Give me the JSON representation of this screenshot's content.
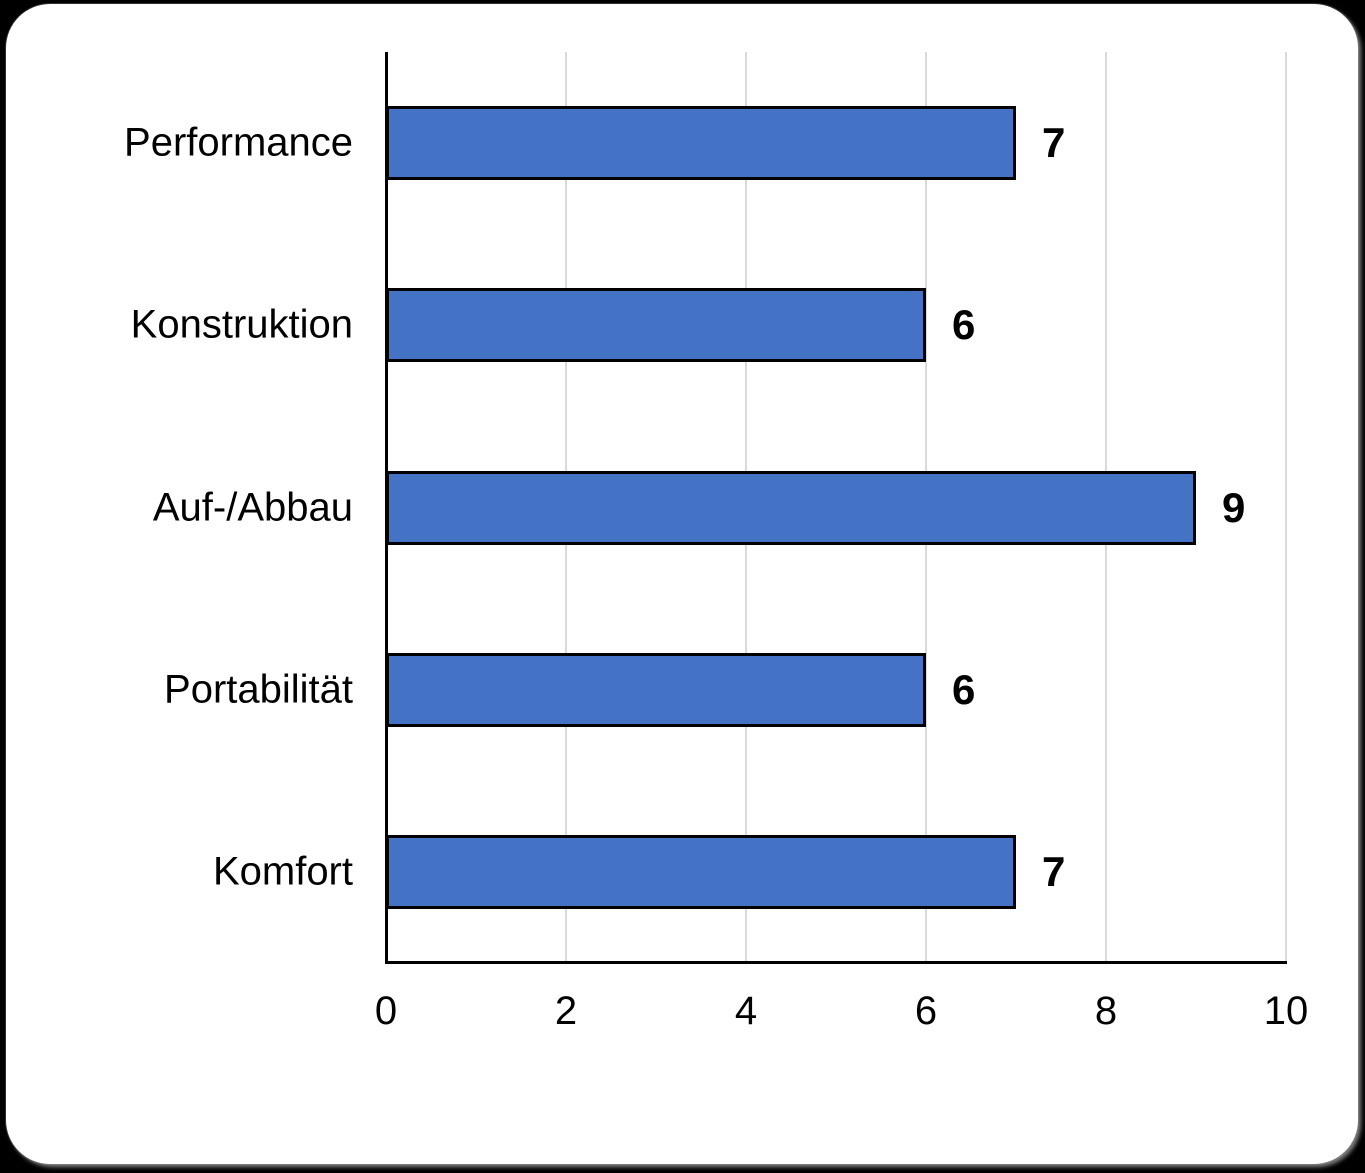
{
  "chart_data": {
    "type": "bar",
    "orientation": "horizontal",
    "title": "",
    "xlabel": "",
    "ylabel": "",
    "categories": [
      "Performance",
      "Konstruktion",
      "Auf-/Abbau",
      "Portabilität",
      "Komfort"
    ],
    "values": [
      7,
      6,
      9,
      6,
      7
    ],
    "xlim": [
      0,
      10
    ],
    "x_ticks": [
      0,
      2,
      4,
      6,
      8,
      10
    ],
    "grid": "vertical-only",
    "legend": "none",
    "data_labels_shown": true,
    "colors": {
      "bar_fill": "#4472C4",
      "bar_border": "#000000",
      "gridline": "#D9D9D9",
      "axis_line": "#000000",
      "text": "#000000",
      "plot_background": "#FFFFFF",
      "card_background": "#FFFFFF",
      "page_background": "#000000"
    }
  }
}
